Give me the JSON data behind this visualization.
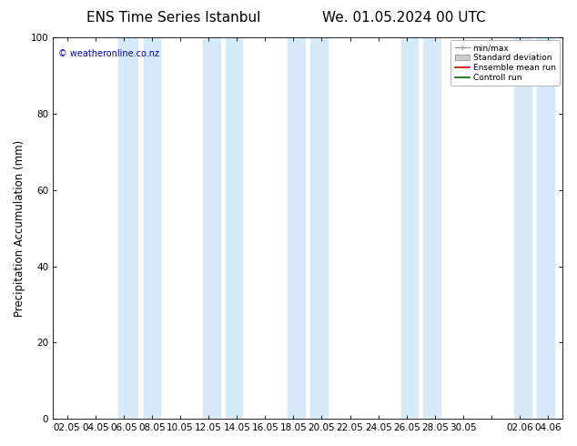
{
  "title_left": "ENS Time Series Istanbul",
  "title_right": "We. 01.05.2024 00 UTC",
  "ylabel": "Precipitation Accumulation (mm)",
  "ylim": [
    0,
    100
  ],
  "yticks": [
    0,
    20,
    40,
    60,
    80,
    100
  ],
  "xtick_labels": [
    "02.05",
    "04.05",
    "06.05",
    "08.05",
    "10.05",
    "12.05",
    "14.05",
    "16.05",
    "18.05",
    "20.05",
    "22.05",
    "24.05",
    "26.05",
    "28.05",
    "30.05",
    "",
    "02.06",
    "04.06"
  ],
  "background_color": "#ffffff",
  "band_color": "#d6eaf8",
  "copyright_text": "© weatheronline.co.nz",
  "copyright_color": "#0000cc",
  "legend_entries": [
    "min/max",
    "Standard deviation",
    "Ensemble mean run",
    "Controll run"
  ],
  "title_fontsize": 11,
  "tick_fontsize": 7.5,
  "ylabel_fontsize": 8.5
}
